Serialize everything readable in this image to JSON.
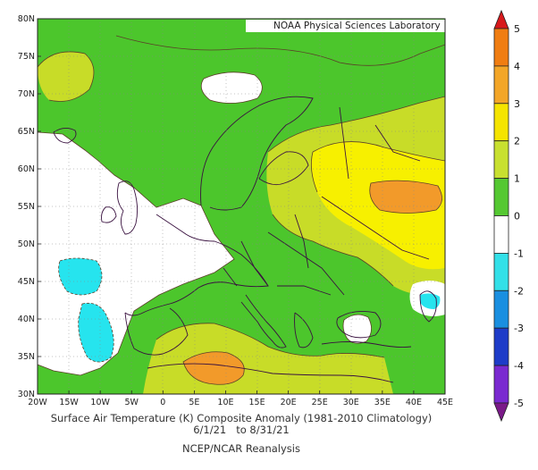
{
  "map": {
    "credit": "NOAA Physical Sciences Laboratory",
    "lat_ticks": [
      "30N",
      "35N",
      "40N",
      "45N",
      "50N",
      "55N",
      "60N",
      "65N",
      "70N",
      "75N",
      "80N"
    ],
    "lon_ticks": [
      "20W",
      "15W",
      "10W",
      "5W",
      "0",
      "5E",
      "10E",
      "15E",
      "20E",
      "25E",
      "30E",
      "35E",
      "40E",
      "45E"
    ],
    "lat_range": [
      30,
      80
    ],
    "lon_range": [
      -20,
      45
    ]
  },
  "caption": {
    "title": "Surface Air Temperature (K) Composite Anomaly (1981-2010 Climatology)",
    "dates": "6/1/21   to 8/31/21",
    "source": "NCEP/NCAR Reanalysis"
  },
  "colorbar": {
    "labels": [
      "5",
      "4",
      "3",
      "2",
      "1",
      "0",
      "-1",
      "-2",
      "-3",
      "-4",
      "-5"
    ],
    "colors": [
      "#d7191c",
      "#f07d12",
      "#f3a628",
      "#f5e400",
      "#c8e030",
      "#55c832",
      "#ffffff",
      "#33e0e8",
      "#1a8fe0",
      "#1e3cc8",
      "#7a2ad0",
      "#b020c8",
      "#7a1a88"
    ]
  },
  "anomaly_colors": {
    "pos_1_2": "#4cc62c",
    "pos_2_3": "#c8dc28",
    "pos_3_4": "#f7f000",
    "pos_4_5": "#f29a2a",
    "neutral": "#ffffff",
    "neg_1": "#26e4ee"
  }
}
